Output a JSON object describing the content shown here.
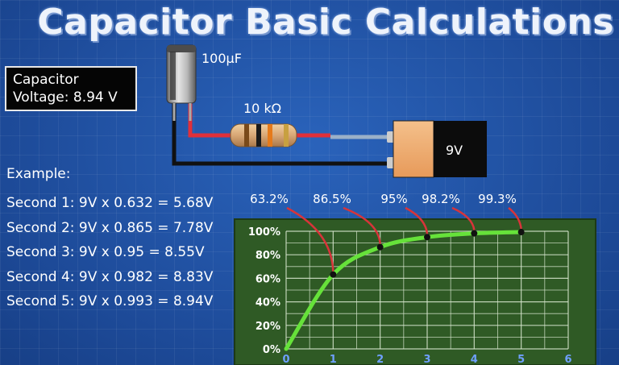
{
  "title": "Capacitor Basic Calculations",
  "voltage_box": {
    "line1": "Capacitor",
    "line2": "Voltage: 8.94 V"
  },
  "circuit": {
    "capacitor_label": "100µF",
    "resistor_label": "10 kΩ",
    "battery_label": "9V"
  },
  "example": {
    "title": "Example:",
    "lines": [
      "Second 1: 9V x 0.632 = 5.68V",
      "Second 2: 9V x 0.865 = 7.78V",
      "Second 3: 9V x 0.95 = 8.55V",
      "Second 4: 9V x 0.982 = 8.83V",
      "Second 5: 9V x 0.993 = 8.94V"
    ]
  },
  "colors": {
    "background": "#1f4fa0",
    "chart_bg": "#2f5a25",
    "curve": "#66e23a",
    "arrow": "#d8343a",
    "wire_red": "#e0303a",
    "wire_black": "#111111"
  },
  "chart_data": {
    "type": "line",
    "x": [
      0,
      1,
      2,
      3,
      4,
      5
    ],
    "series": [
      {
        "values": [
          0,
          63.2,
          86.5,
          95,
          98.2,
          99.3
        ]
      }
    ],
    "xticks": [
      "0",
      "1",
      "2",
      "3",
      "4",
      "5",
      "6"
    ],
    "yticks": [
      "0%",
      "20%",
      "40%",
      "60%",
      "80%",
      "100%"
    ],
    "xlim": [
      0,
      6
    ],
    "ylim": [
      0,
      100
    ],
    "grid": true,
    "annotations": [
      "63.2%",
      "86.5%",
      "95%",
      "98.2%",
      "99.3%"
    ]
  }
}
